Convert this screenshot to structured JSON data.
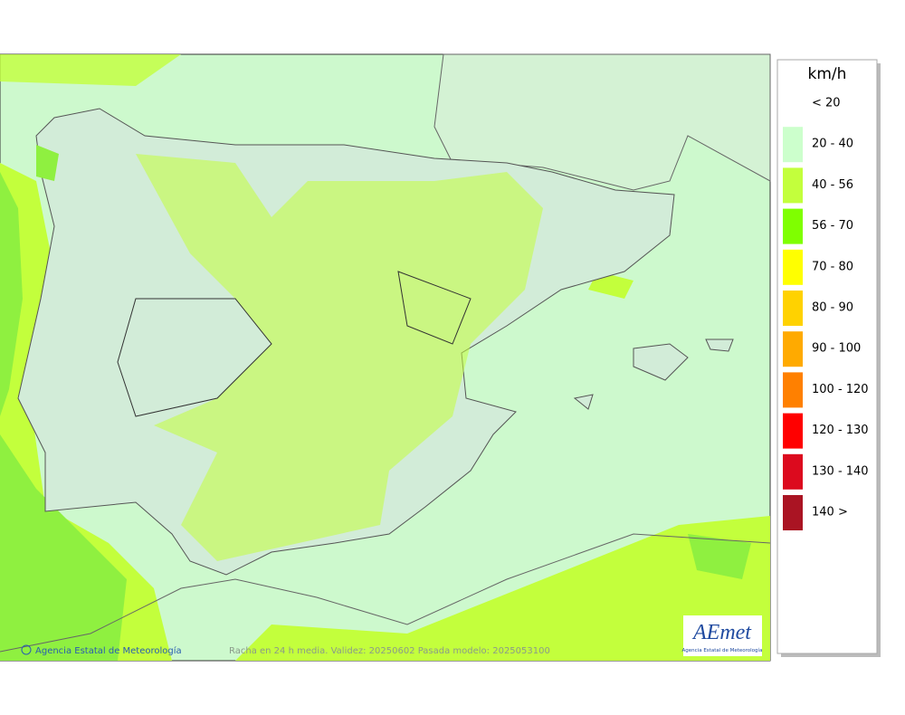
{
  "legend": {
    "title": "km/h",
    "items": [
      {
        "label": "< 20",
        "color": "#ffffff"
      },
      {
        "label": "20 - 40",
        "color": "#ccffcc"
      },
      {
        "label": "40 - 56",
        "color": "#c3ff3c"
      },
      {
        "label": "56 - 70",
        "color": "#7fff00"
      },
      {
        "label": "70 - 80",
        "color": "#ffff00"
      },
      {
        "label": "80 - 90",
        "color": "#ffd200"
      },
      {
        "label": "90 - 100",
        "color": "#ffaa00"
      },
      {
        "label": "100 - 120",
        "color": "#ff8000"
      },
      {
        "label": "120 - 130",
        "color": "#ff0000"
      },
      {
        "label": "130 - 140",
        "color": "#dc0a1e"
      },
      {
        "label": "140 >",
        "color": "#aa1423"
      }
    ]
  },
  "footer": {
    "credit": "Agencia Estatal de Meteorología",
    "caption": "Racha en 24 h media. Validez: 20250602 Pasada modelo: 2025053100"
  },
  "logo": {
    "name": "AEmet",
    "subtitle": "Agencia Estatal de Meteorología"
  }
}
